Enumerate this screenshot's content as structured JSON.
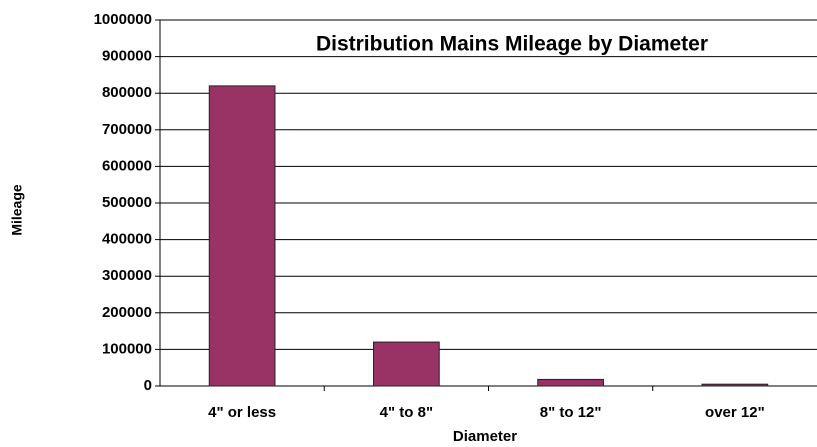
{
  "chart_data": {
    "type": "bar",
    "title": "Distribution Mains Mileage by Diameter",
    "x_label": "Diameter",
    "y_label": "Mileage",
    "categories": [
      "4\" or less",
      "4\" to 8\"",
      "8\" to 12\"",
      "over 12\""
    ],
    "values": [
      820000,
      120000,
      18000,
      5000
    ],
    "color": "#993366",
    "ylim": [
      0,
      1000000
    ],
    "yticks": [
      0,
      100000,
      200000,
      300000,
      400000,
      500000,
      600000,
      700000,
      800000,
      900000,
      1000000
    ],
    "grid": true
  }
}
